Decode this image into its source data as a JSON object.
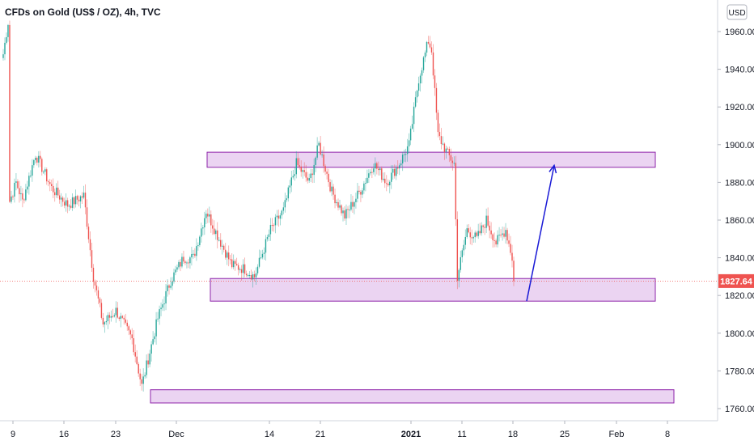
{
  "header": {
    "symbol_title": "CFDs on Gold (US$ / OZ), 4h, TVC",
    "currency_badge": "USD"
  },
  "colors": {
    "up": "#26a69a",
    "down": "#ef5350",
    "zone_fill": "#e7cdf0",
    "zone_stroke": "#8e24aa",
    "arrow": "#1a1ad6",
    "price_tag": "#ef5350",
    "last_price_line": "#ef5350"
  },
  "chart_data": {
    "type": "candlestick",
    "title": "CFDs on Gold (US$ / OZ), 4h, TVC",
    "interval": "4h",
    "ylim": [
      1755,
      1975
    ],
    "y_ticks": [
      1760,
      1780,
      1800,
      1820,
      1840,
      1860,
      1880,
      1900,
      1920,
      1940,
      1960
    ],
    "y_tick_labels": [
      "1760.00",
      "1780.00",
      "1800.00",
      "1820.00",
      "1840.00",
      "1860.00",
      "1880.00",
      "1900.00",
      "1920.00",
      "1940.00",
      "1960.00"
    ],
    "x_ticks": [
      {
        "label": "9",
        "bold": false
      },
      {
        "label": "16",
        "bold": false
      },
      {
        "label": "23",
        "bold": false
      },
      {
        "label": "Dec",
        "bold": false
      },
      {
        "label": "14",
        "bold": false
      },
      {
        "label": "21",
        "bold": false
      },
      {
        "label": "2021",
        "bold": true
      },
      {
        "label": "11",
        "bold": false
      },
      {
        "label": "18",
        "bold": false
      },
      {
        "label": "25",
        "bold": false
      },
      {
        "label": "Feb",
        "bold": false
      },
      {
        "label": "8",
        "bold": false
      }
    ],
    "last_price": 1827.64,
    "last_price_label": "1827.64",
    "price_path_key_levels": [
      [
        0,
        1948
      ],
      [
        3,
        1965
      ],
      [
        4,
        1870
      ],
      [
        8,
        1880
      ],
      [
        12,
        1870
      ],
      [
        20,
        1895
      ],
      [
        30,
        1877
      ],
      [
        40,
        1868
      ],
      [
        50,
        1873
      ],
      [
        56,
        1830
      ],
      [
        62,
        1805
      ],
      [
        70,
        1812
      ],
      [
        80,
        1797
      ],
      [
        86,
        1772
      ],
      [
        96,
        1808
      ],
      [
        104,
        1828
      ],
      [
        112,
        1840
      ],
      [
        118,
        1840
      ],
      [
        126,
        1865
      ],
      [
        134,
        1850
      ],
      [
        142,
        1836
      ],
      [
        150,
        1834
      ],
      [
        156,
        1830
      ],
      [
        166,
        1855
      ],
      [
        174,
        1865
      ],
      [
        182,
        1890
      ],
      [
        190,
        1880
      ],
      [
        196,
        1900
      ],
      [
        204,
        1875
      ],
      [
        212,
        1862
      ],
      [
        222,
        1876
      ],
      [
        230,
        1890
      ],
      [
        238,
        1880
      ],
      [
        246,
        1890
      ],
      [
        252,
        1900
      ],
      [
        258,
        1935
      ],
      [
        264,
        1955
      ],
      [
        266,
        1950
      ],
      [
        270,
        1905
      ],
      [
        276,
        1895
      ],
      [
        280,
        1890
      ],
      [
        282,
        1830
      ],
      [
        288,
        1855
      ],
      [
        294,
        1850
      ],
      [
        300,
        1860
      ],
      [
        306,
        1848
      ],
      [
        312,
        1855
      ],
      [
        316,
        1840
      ],
      [
        318,
        1828
      ]
    ],
    "candle_count": 318,
    "zones": [
      {
        "name": "resistance-zone",
        "from": 1888,
        "to": 1896
      },
      {
        "name": "support-zone",
        "from": 1817,
        "to": 1829
      },
      {
        "name": "lower-support-zone",
        "from": 1763,
        "to": 1770
      }
    ],
    "projection_arrow": {
      "from_price": 1817,
      "to_price": 1889
    },
    "grid": false,
    "legend": "none"
  }
}
